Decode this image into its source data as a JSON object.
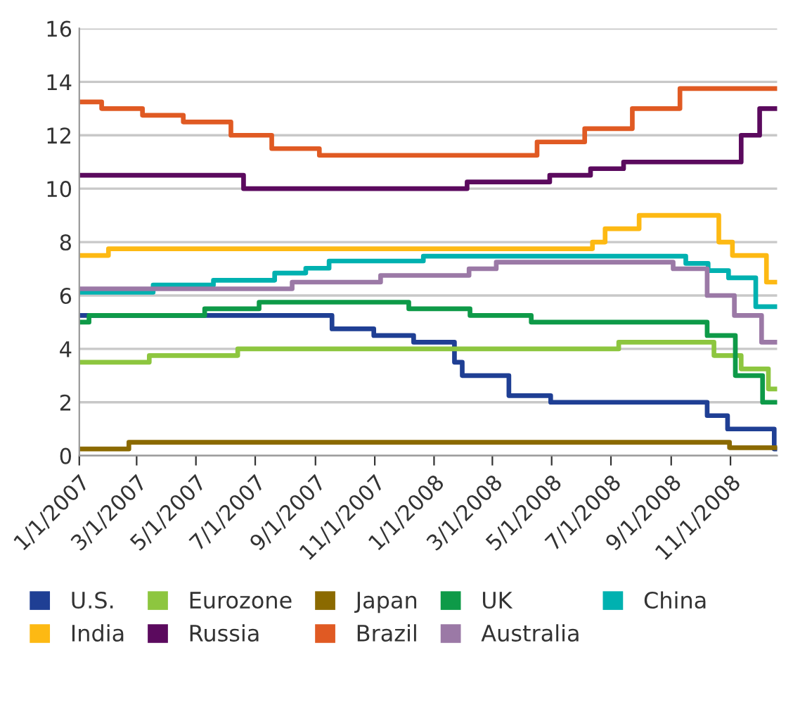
{
  "chart_data": {
    "type": "step",
    "xlim": [
      "2007-01-01",
      "2008-12-19"
    ],
    "ylim": [
      0,
      16
    ],
    "yticks": [
      0,
      2,
      4,
      6,
      8,
      10,
      12,
      14,
      16
    ],
    "xticks": [
      {
        "value": "2007-01-01",
        "label": "1/1/2007"
      },
      {
        "value": "2007-03-01",
        "label": "3/1/2007"
      },
      {
        "value": "2007-05-01",
        "label": "5/1/2007"
      },
      {
        "value": "2007-07-01",
        "label": "7/1/2007"
      },
      {
        "value": "2007-09-01",
        "label": "9/1/2007"
      },
      {
        "value": "2007-11-01",
        "label": "11/1/2007"
      },
      {
        "value": "2008-01-01",
        "label": "1/1/2008"
      },
      {
        "value": "2008-03-01",
        "label": "3/1/2008"
      },
      {
        "value": "2008-05-01",
        "label": "5/1/2008"
      },
      {
        "value": "2008-07-01",
        "label": "7/1/2008"
      },
      {
        "value": "2008-09-01",
        "label": "9/1/2008"
      },
      {
        "value": "2008-11-01",
        "label": "11/1/2008"
      }
    ],
    "grid": "y",
    "legend": "bottom",
    "line_style": "solid",
    "marker": "none",
    "series": [
      {
        "name": "U.S.",
        "color": "#1f3f94",
        "x": [
          "2007-01-01",
          "2007-09-18",
          "2007-10-31",
          "2007-12-11",
          "2008-01-22",
          "2008-01-30",
          "2008-03-18",
          "2008-04-30",
          "2008-10-08",
          "2008-10-29",
          "2008-12-16",
          "2008-12-19"
        ],
        "values": [
          5.25,
          4.75,
          4.5,
          4.25,
          3.5,
          3.0,
          2.25,
          2.0,
          1.5,
          1.0,
          0.25,
          0.25
        ]
      },
      {
        "name": "Eurozone",
        "color": "#8dc63f",
        "x": [
          "2007-01-01",
          "2007-03-14",
          "2007-06-13",
          "2008-07-09",
          "2008-10-15",
          "2008-11-12",
          "2008-12-10",
          "2008-12-19"
        ],
        "values": [
          3.5,
          3.75,
          4.0,
          4.25,
          3.75,
          3.25,
          2.5,
          2.5
        ]
      },
      {
        "name": "Japan",
        "color": "#8b6a00",
        "x": [
          "2007-01-01",
          "2007-02-21",
          "2008-10-31",
          "2008-12-19"
        ],
        "values": [
          0.25,
          0.5,
          0.3,
          0.3
        ]
      },
      {
        "name": "UK",
        "color": "#0e9a48",
        "x": [
          "2007-01-01",
          "2007-01-11",
          "2007-05-10",
          "2007-07-05",
          "2007-12-06",
          "2008-02-07",
          "2008-04-10",
          "2008-10-08",
          "2008-11-06",
          "2008-12-04",
          "2008-12-19"
        ],
        "values": [
          5.0,
          5.25,
          5.5,
          5.75,
          5.5,
          5.25,
          5.0,
          4.5,
          3.0,
          2.0,
          2.0
        ]
      },
      {
        "name": "China",
        "color": "#00b1b0",
        "x": [
          "2007-01-01",
          "2007-03-18",
          "2007-05-19",
          "2007-07-21",
          "2007-08-22",
          "2007-09-15",
          "2007-12-21",
          "2008-09-16",
          "2008-10-09",
          "2008-10-30",
          "2008-11-27",
          "2008-12-19"
        ],
        "values": [
          6.12,
          6.39,
          6.57,
          6.84,
          7.02,
          7.29,
          7.47,
          7.2,
          6.93,
          6.66,
          5.58,
          5.58
        ]
      },
      {
        "name": "India",
        "color": "#fdb913",
        "x": [
          "2007-01-01",
          "2007-01-31",
          "2008-06-12",
          "2008-06-25",
          "2008-07-30",
          "2008-10-20",
          "2008-11-03",
          "2008-12-08",
          "2008-12-19"
        ],
        "values": [
          7.5,
          7.75,
          8.0,
          8.5,
          9.0,
          8.0,
          7.5,
          6.5,
          6.5
        ]
      },
      {
        "name": "Russia",
        "color": "#5b0a5e",
        "x": [
          "2007-01-01",
          "2007-06-19",
          "2008-02-04",
          "2008-04-29",
          "2008-06-10",
          "2008-07-14",
          "2008-11-12",
          "2008-12-01",
          "2008-12-19"
        ],
        "values": [
          10.5,
          10.0,
          10.25,
          10.5,
          10.75,
          11.0,
          12.0,
          13.0,
          13.0
        ]
      },
      {
        "name": "Brazil",
        "color": "#e05a23",
        "x": [
          "2007-01-01",
          "2007-01-24",
          "2007-03-07",
          "2007-04-18",
          "2007-06-06",
          "2007-07-18",
          "2007-09-05",
          "2008-04-16",
          "2008-06-04",
          "2008-07-23",
          "2008-09-10",
          "2008-12-19"
        ],
        "values": [
          13.25,
          13.0,
          12.75,
          12.5,
          12.0,
          11.5,
          11.25,
          11.75,
          12.25,
          13.0,
          13.75,
          13.75
        ]
      },
      {
        "name": "Australia",
        "color": "#9b79a6",
        "x": [
          "2007-01-01",
          "2007-08-08",
          "2007-11-07",
          "2008-02-06",
          "2008-03-05",
          "2008-09-03",
          "2008-10-08",
          "2008-11-05",
          "2008-12-03",
          "2008-12-19"
        ],
        "values": [
          6.25,
          6.5,
          6.75,
          7.0,
          7.25,
          7.0,
          6.0,
          5.25,
          4.25,
          4.25
        ]
      }
    ]
  }
}
